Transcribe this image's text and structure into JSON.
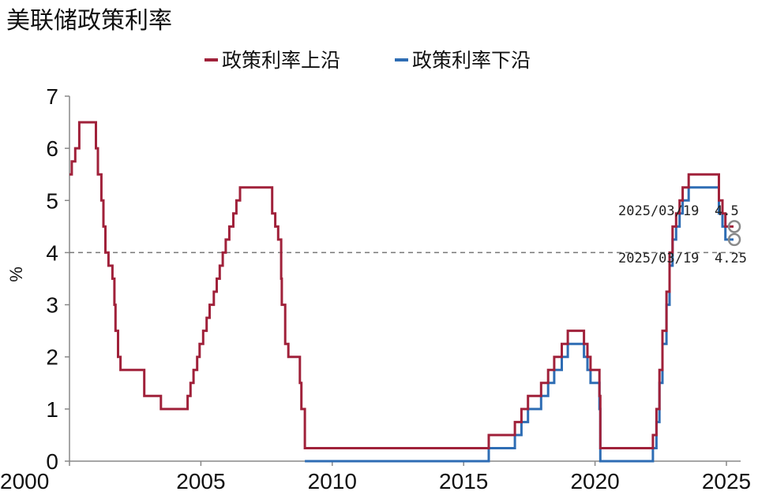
{
  "chart_data": {
    "type": "line",
    "title": "美联储政策利率",
    "xlabel": "",
    "ylabel": "%",
    "xlim": [
      2000,
      2025.35
    ],
    "ylim": [
      0,
      7
    ],
    "x_ticks": [
      "2000",
      "2005",
      "2010",
      "2015",
      "2020",
      "2025"
    ],
    "y_ticks": [
      "0",
      "1",
      "2",
      "3",
      "4",
      "5",
      "6",
      "7"
    ],
    "reference_line": 4,
    "legend": "top-center",
    "grid": false,
    "series": [
      {
        "name": "政策利率上沿",
        "color": "#A0213A",
        "points": [
          [
            "2000-01-01",
            5.5
          ],
          [
            "2000-02-02",
            5.75
          ],
          [
            "2000-03-21",
            6.0
          ],
          [
            "2000-05-16",
            6.5
          ],
          [
            "2001-01-03",
            6.0
          ],
          [
            "2001-01-31",
            5.5
          ],
          [
            "2001-03-20",
            5.0
          ],
          [
            "2001-04-18",
            4.5
          ],
          [
            "2001-05-15",
            4.0
          ],
          [
            "2001-06-27",
            3.75
          ],
          [
            "2001-08-21",
            3.5
          ],
          [
            "2001-09-17",
            3.0
          ],
          [
            "2001-10-02",
            2.5
          ],
          [
            "2001-11-06",
            2.0
          ],
          [
            "2001-12-11",
            1.75
          ],
          [
            "2002-11-06",
            1.25
          ],
          [
            "2003-06-25",
            1.0
          ],
          [
            "2004-06-30",
            1.25
          ],
          [
            "2004-08-10",
            1.5
          ],
          [
            "2004-09-21",
            1.75
          ],
          [
            "2004-11-10",
            2.0
          ],
          [
            "2004-12-14",
            2.25
          ],
          [
            "2005-02-02",
            2.5
          ],
          [
            "2005-03-22",
            2.75
          ],
          [
            "2005-05-03",
            3.0
          ],
          [
            "2005-06-30",
            3.25
          ],
          [
            "2005-08-09",
            3.5
          ],
          [
            "2005-09-20",
            3.75
          ],
          [
            "2005-11-01",
            4.0
          ],
          [
            "2005-12-13",
            4.25
          ],
          [
            "2006-01-31",
            4.5
          ],
          [
            "2006-03-28",
            4.75
          ],
          [
            "2006-05-10",
            5.0
          ],
          [
            "2006-06-29",
            5.25
          ],
          [
            "2007-09-18",
            4.75
          ],
          [
            "2007-10-31",
            4.5
          ],
          [
            "2007-12-11",
            4.25
          ],
          [
            "2008-01-22",
            3.5
          ],
          [
            "2008-01-30",
            3.0
          ],
          [
            "2008-03-18",
            2.25
          ],
          [
            "2008-04-30",
            2.0
          ],
          [
            "2008-10-08",
            1.5
          ],
          [
            "2008-10-29",
            1.0
          ],
          [
            "2008-12-16",
            0.25
          ],
          [
            "2015-12-16",
            0.5
          ],
          [
            "2016-12-14",
            0.75
          ],
          [
            "2017-03-15",
            1.0
          ],
          [
            "2017-06-14",
            1.25
          ],
          [
            "2017-12-13",
            1.5
          ],
          [
            "2018-03-21",
            1.75
          ],
          [
            "2018-06-13",
            2.0
          ],
          [
            "2018-09-26",
            2.25
          ],
          [
            "2018-12-19",
            2.5
          ],
          [
            "2019-07-31",
            2.25
          ],
          [
            "2019-09-18",
            2.0
          ],
          [
            "2019-10-30",
            1.75
          ],
          [
            "2020-03-03",
            1.25
          ],
          [
            "2020-03-15",
            0.25
          ],
          [
            "2022-03-16",
            0.5
          ],
          [
            "2022-05-04",
            1.0
          ],
          [
            "2022-06-15",
            1.75
          ],
          [
            "2022-07-27",
            2.5
          ],
          [
            "2022-09-21",
            3.25
          ],
          [
            "2022-11-02",
            4.0
          ],
          [
            "2022-12-14",
            4.5
          ],
          [
            "2023-02-01",
            4.75
          ],
          [
            "2023-03-22",
            5.0
          ],
          [
            "2023-05-03",
            5.25
          ],
          [
            "2023-07-26",
            5.5
          ],
          [
            "2024-09-18",
            5.0
          ],
          [
            "2024-11-07",
            4.75
          ],
          [
            "2024-12-18",
            4.5
          ],
          [
            "2025-03-19",
            4.5
          ]
        ]
      },
      {
        "name": "政策利率下沿",
        "color": "#2E6DB4",
        "points": [
          [
            "2008-12-16",
            0.0
          ],
          [
            "2015-12-16",
            0.25
          ],
          [
            "2016-12-14",
            0.5
          ],
          [
            "2017-03-15",
            0.75
          ],
          [
            "2017-06-14",
            1.0
          ],
          [
            "2017-12-13",
            1.25
          ],
          [
            "2018-03-21",
            1.5
          ],
          [
            "2018-06-13",
            1.75
          ],
          [
            "2018-09-26",
            2.0
          ],
          [
            "2018-12-19",
            2.25
          ],
          [
            "2019-07-31",
            2.0
          ],
          [
            "2019-09-18",
            1.75
          ],
          [
            "2019-10-30",
            1.5
          ],
          [
            "2020-03-03",
            1.0
          ],
          [
            "2020-03-15",
            0.0
          ],
          [
            "2022-03-16",
            0.25
          ],
          [
            "2022-05-04",
            0.75
          ],
          [
            "2022-06-15",
            1.5
          ],
          [
            "2022-07-27",
            2.25
          ],
          [
            "2022-09-21",
            3.0
          ],
          [
            "2022-11-02",
            3.75
          ],
          [
            "2022-12-14",
            4.25
          ],
          [
            "2023-02-01",
            4.5
          ],
          [
            "2023-03-22",
            4.75
          ],
          [
            "2023-05-03",
            5.0
          ],
          [
            "2023-07-26",
            5.25
          ],
          [
            "2024-09-18",
            4.75
          ],
          [
            "2024-11-07",
            4.5
          ],
          [
            "2024-12-18",
            4.25
          ],
          [
            "2025-03-19",
            4.25
          ]
        ]
      }
    ],
    "annotations": [
      {
        "date_label": "2025/03/19",
        "value_label": "4.5",
        "series": "政策利率上沿",
        "date": "2025-03-19",
        "y": 4.5
      },
      {
        "date_label": "2025/03/19",
        "value_label": "4.25",
        "series": "政策利率下沿",
        "date": "2025-03-19",
        "y": 4.25
      }
    ]
  }
}
